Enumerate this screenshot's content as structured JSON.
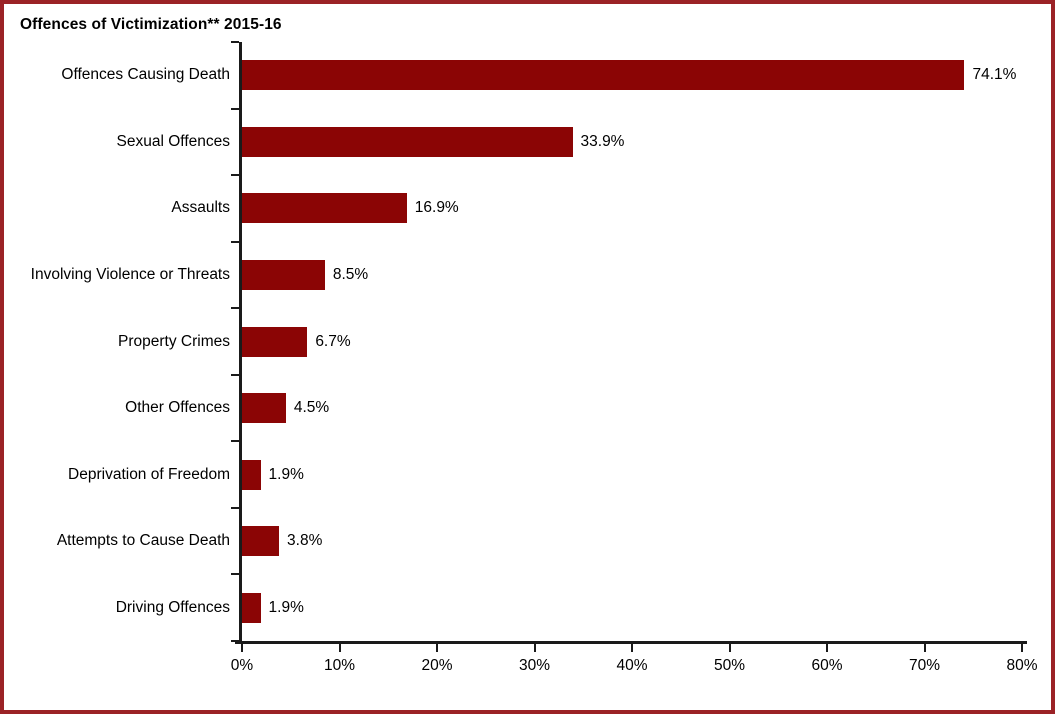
{
  "chart_data": {
    "type": "bar",
    "orientation": "horizontal",
    "title": "Offences of Victimization** 2015-16",
    "categories": [
      "Offences Causing Death",
      "Sexual Offences",
      "Assaults",
      "Involving Violence or Threats",
      "Property Crimes",
      "Other Offences",
      "Deprivation of Freedom",
      "Attempts to Cause Death",
      "Driving Offences"
    ],
    "values": [
      74.1,
      33.9,
      16.9,
      8.5,
      6.7,
      4.5,
      1.9,
      3.8,
      1.9
    ],
    "value_labels": [
      "74.1%",
      "33.9%",
      "16.9%",
      "8.5%",
      "6.7%",
      "4.5%",
      "1.9%",
      "3.8%",
      "1.9%"
    ],
    "xlabel": "",
    "ylabel": "",
    "xlim": [
      0,
      80
    ],
    "x_ticks": [
      "0%",
      "10%",
      "20%",
      "30%",
      "40%",
      "50%",
      "60%",
      "70%",
      "80%"
    ],
    "grid": false,
    "legend": null,
    "bar_color": "#8b0505",
    "frame_color": "#9b2226",
    "axis_color": "#1a1a1a",
    "text_color": "#000000"
  }
}
